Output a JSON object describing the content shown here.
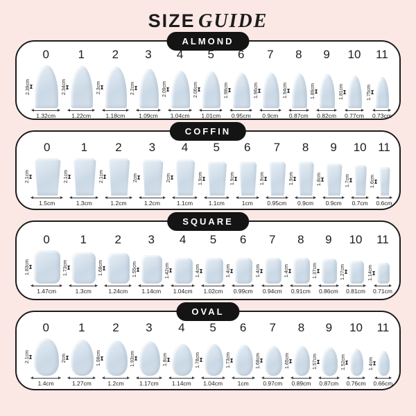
{
  "title": {
    "main": "SIZE",
    "accent": "GUIDE"
  },
  "unit": "cm",
  "colors": {
    "background": "#fbe8e5",
    "panel": "#ffffff",
    "panel_border": "#1b1b1b",
    "pill": "#141414",
    "pill_text": "#ffffff",
    "nail_base": "#cbd9e6",
    "nail_highlight": "#e3ecf3",
    "text": "#1c1c1c"
  },
  "sections": [
    {
      "label": "ALMOND",
      "shape": "almond",
      "nails": [
        {
          "size": "0",
          "height": "2.39cm",
          "width": "1.32cm"
        },
        {
          "size": "1",
          "height": "2.34cm",
          "width": "1.22cm"
        },
        {
          "size": "2",
          "height": "2.3cm",
          "width": "1.18cm"
        },
        {
          "size": "3",
          "height": "2.2cm",
          "width": "1.09cm"
        },
        {
          "size": "4",
          "height": "2.09cm",
          "width": "1.04cm"
        },
        {
          "size": "5",
          "height": "2.06cm",
          "width": "1.01cm"
        },
        {
          "size": "6",
          "height": "1.98cm",
          "width": "0.95cm"
        },
        {
          "size": "7",
          "height": "1.96cm",
          "width": "0.9cm"
        },
        {
          "size": "8",
          "height": "1.94cm",
          "width": "0.87cm"
        },
        {
          "size": "9",
          "height": "1.89cm",
          "width": "0.82cm"
        },
        {
          "size": "10",
          "height": "1.81cm",
          "width": "0.77cm"
        },
        {
          "size": "11",
          "height": "1.75cm",
          "width": "0.73cm"
        }
      ]
    },
    {
      "label": "COFFIN",
      "shape": "coffin",
      "nails": [
        {
          "size": "0",
          "height": "2.1cm",
          "width": "1.5cm"
        },
        {
          "size": "1",
          "height": "2.1cm",
          "width": "1.3cm"
        },
        {
          "size": "2",
          "height": "2.1cm",
          "width": "1.2cm"
        },
        {
          "size": "3",
          "height": "2cm",
          "width": "1.2cm"
        },
        {
          "size": "4",
          "height": "2cm",
          "width": "1.1cm"
        },
        {
          "size": "5",
          "height": "1.9cm",
          "width": "1.1cm"
        },
        {
          "size": "6",
          "height": "1.9cm",
          "width": "1cm"
        },
        {
          "size": "7",
          "height": "1.9cm",
          "width": "0.95cm"
        },
        {
          "size": "8",
          "height": "1.9cm",
          "width": "0.9cm"
        },
        {
          "size": "9",
          "height": "1.8cm",
          "width": "0.9cm"
        },
        {
          "size": "10",
          "height": "1.7cm",
          "width": "0.7cm"
        },
        {
          "size": "11",
          "height": "1.6cm",
          "width": "0.6cm"
        }
      ]
    },
    {
      "label": "SQUARE",
      "shape": "square",
      "nails": [
        {
          "size": "0",
          "height": "1.83cm",
          "width": "1.47cm"
        },
        {
          "size": "1",
          "height": "1.73cm",
          "width": "1.3cm"
        },
        {
          "size": "2",
          "height": "1.68cm",
          "width": "1.24cm"
        },
        {
          "size": "3",
          "height": "1.55cm",
          "width": "1.14cm"
        },
        {
          "size": "4",
          "height": "1.42cm",
          "width": "1.04cm"
        },
        {
          "size": "5",
          "height": "1.4cm",
          "width": "1.02cm"
        },
        {
          "size": "6",
          "height": "1.4cm",
          "width": "0.99cm"
        },
        {
          "size": "7",
          "height": "1.4cm",
          "width": "0.94cm"
        },
        {
          "size": "8",
          "height": "1.4cm",
          "width": "0.91cm"
        },
        {
          "size": "9",
          "height": "1.37cm",
          "width": "0.86cm"
        },
        {
          "size": "10",
          "height": "1.27cm",
          "width": "0.81cm"
        },
        {
          "size": "11",
          "height": "1.14cm",
          "width": "0.71cm"
        }
      ]
    },
    {
      "label": "OVAL",
      "shape": "oval",
      "nails": [
        {
          "size": "0",
          "height": "2.1cm",
          "width": "1.4cm"
        },
        {
          "size": "1",
          "height": "2cm",
          "width": "1.27cm"
        },
        {
          "size": "2",
          "height": "1.98cm",
          "width": "1.2cm"
        },
        {
          "size": "3",
          "height": "1.93cm",
          "width": "1.17cm"
        },
        {
          "size": "4",
          "height": "1.8cm",
          "width": "1.14cm"
        },
        {
          "size": "5",
          "height": "1.78cm",
          "width": "1.04cm"
        },
        {
          "size": "6",
          "height": "1.73cm",
          "width": "1cm"
        },
        {
          "size": "7",
          "height": "1.68cm",
          "width": "0.97cm"
        },
        {
          "size": "8",
          "height": "1.65cm",
          "width": "0.89cm"
        },
        {
          "size": "9",
          "height": "1.57cm",
          "width": "0.87cm"
        },
        {
          "size": "10",
          "height": "1.52cm",
          "width": "0.76cm"
        },
        {
          "size": "11",
          "height": "1.4cm",
          "width": "0.66cm"
        }
      ]
    }
  ]
}
